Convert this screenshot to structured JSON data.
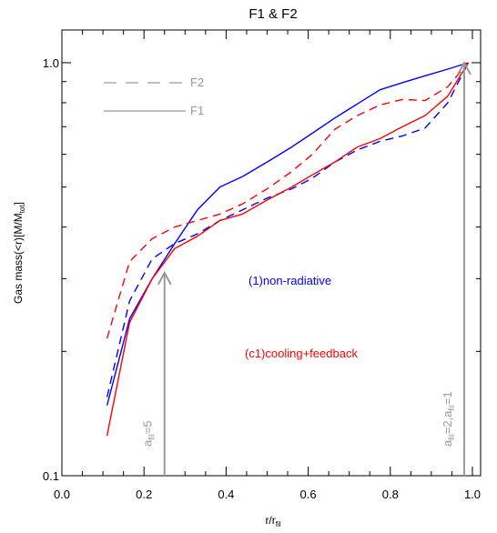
{
  "chart_data": {
    "type": "line",
    "title": "F1 & F2",
    "xlabel": "r/r_fil",
    "ylabel": "Gas mass(<r)[M/M_tot]",
    "xlim": [
      0.0,
      1.02
    ],
    "ylim": [
      0.1,
      1.2
    ],
    "yscale": "log",
    "x_ticks": [
      "0.0",
      "0.2",
      "0.4",
      "0.6",
      "0.8",
      "1.0"
    ],
    "y_ticks": [
      "0.1",
      "1.0"
    ],
    "grid": false,
    "legend": {
      "placement": "top-left",
      "entries": [
        {
          "label": "F2",
          "style": "dashed",
          "color": "#999999"
        },
        {
          "label": "F1",
          "style": "solid",
          "color": "#999999"
        }
      ]
    },
    "series": [
      {
        "group": "(1)non-radiative",
        "file": "F1",
        "style": "solid",
        "color": "#0000ff",
        "x": [
          0.11,
          0.165,
          0.22,
          0.275,
          0.33,
          0.385,
          0.44,
          0.5,
          0.56,
          0.61,
          0.665,
          0.72,
          0.775,
          0.83,
          0.885,
          0.94,
          0.99
        ],
        "y": [
          0.148,
          0.24,
          0.3,
          0.365,
          0.44,
          0.5,
          0.53,
          0.575,
          0.625,
          0.675,
          0.735,
          0.795,
          0.86,
          0.895,
          0.93,
          0.965,
          1.0
        ]
      },
      {
        "group": "(1)non-radiative",
        "file": "F2",
        "style": "dashed",
        "color": "#0000ff",
        "x": [
          0.11,
          0.165,
          0.22,
          0.275,
          0.33,
          0.385,
          0.44,
          0.5,
          0.56,
          0.61,
          0.665,
          0.72,
          0.775,
          0.83,
          0.885,
          0.94,
          0.99
        ],
        "y": [
          0.155,
          0.265,
          0.335,
          0.365,
          0.385,
          0.415,
          0.44,
          0.47,
          0.495,
          0.525,
          0.575,
          0.615,
          0.645,
          0.665,
          0.695,
          0.8,
          1.0
        ]
      },
      {
        "group": "(c1)cooling+feedback",
        "file": "F1",
        "style": "solid",
        "color": "#ff0000",
        "x": [
          0.11,
          0.165,
          0.22,
          0.275,
          0.33,
          0.385,
          0.44,
          0.5,
          0.56,
          0.61,
          0.665,
          0.72,
          0.775,
          0.83,
          0.885,
          0.94,
          0.99
        ],
        "y": [
          0.125,
          0.235,
          0.3,
          0.355,
          0.38,
          0.415,
          0.43,
          0.465,
          0.5,
          0.535,
          0.575,
          0.625,
          0.655,
          0.7,
          0.745,
          0.83,
          1.0
        ]
      },
      {
        "group": "(c1)cooling+feedback",
        "file": "F2",
        "style": "dashed",
        "color": "#ff0000",
        "x": [
          0.11,
          0.165,
          0.22,
          0.275,
          0.33,
          0.385,
          0.44,
          0.5,
          0.56,
          0.61,
          0.665,
          0.72,
          0.775,
          0.83,
          0.885,
          0.94,
          0.99
        ],
        "y": [
          0.215,
          0.33,
          0.375,
          0.4,
          0.415,
          0.43,
          0.455,
          0.495,
          0.545,
          0.6,
          0.69,
          0.745,
          0.79,
          0.815,
          0.81,
          0.875,
          1.0
        ]
      }
    ],
    "annotations": [
      {
        "text": "(1)non-radiative",
        "color": "#0000ff"
      },
      {
        "text": "(c1)cooling+feedback",
        "color": "#ff0000"
      }
    ],
    "arrows": [
      {
        "x": 0.25,
        "y_from": 0.1,
        "y_to": 0.31,
        "label": "a_fil=5",
        "label_base": "a",
        "label_sub": "fil",
        "label_rest": "=5",
        "color": "#999999"
      },
      {
        "x": 0.98,
        "y_from": 0.1,
        "y_to": 1.0,
        "label": "a_fil=2,a_fil=1",
        "label_parts": [
          "a",
          "fil",
          "=2,a",
          "fil",
          "=1"
        ],
        "color": "#999999"
      }
    ]
  }
}
